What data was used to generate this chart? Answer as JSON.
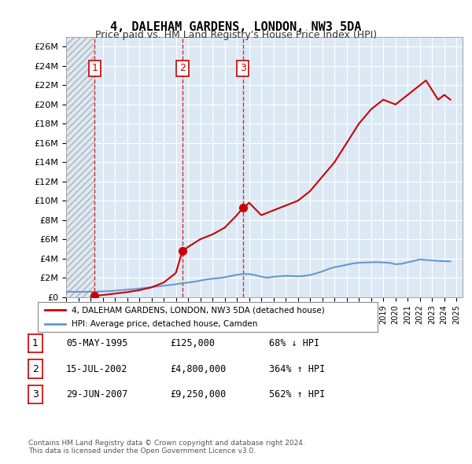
{
  "title": "4, DALEHAM GARDENS, LONDON, NW3 5DA",
  "subtitle": "Price paid vs. HM Land Registry's House Price Index (HPI)",
  "background_color": "#ffffff",
  "plot_bg_color": "#dce9f5",
  "grid_color": "#ffffff",
  "hatch_color": "#c0c0c0",
  "ylabel_values": [
    "£0",
    "£2M",
    "£4M",
    "£6M",
    "£8M",
    "£10M",
    "£12M",
    "£14M",
    "£16M",
    "£18M",
    "£20M",
    "£22M",
    "£24M",
    "£26M"
  ],
  "ytick_values": [
    0,
    2000000,
    4000000,
    6000000,
    8000000,
    10000000,
    12000000,
    14000000,
    16000000,
    18000000,
    20000000,
    22000000,
    24000000,
    26000000
  ],
  "ylim": [
    0,
    27000000
  ],
  "xlim_start": 1993.0,
  "xlim_end": 2025.5,
  "purchases": [
    {
      "year": 1995.35,
      "price": 125000,
      "label": "1"
    },
    {
      "year": 2002.54,
      "price": 4800000,
      "label": "2"
    },
    {
      "year": 2007.49,
      "price": 9250000,
      "label": "3"
    }
  ],
  "hpi_line_color": "#6699cc",
  "price_line_color": "#cc0000",
  "legend_entries": [
    "4, DALEHAM GARDENS, LONDON, NW3 5DA (detached house)",
    "HPI: Average price, detached house, Camden"
  ],
  "table_rows": [
    {
      "num": "1",
      "date": "05-MAY-1995",
      "price": "£125,000",
      "change": "68% ↓ HPI"
    },
    {
      "num": "2",
      "date": "15-JUL-2002",
      "price": "£4,800,000",
      "change": "364% ↑ HPI"
    },
    {
      "num": "3",
      "date": "29-JUN-2007",
      "price": "£9,250,000",
      "change": "562% ↑ HPI"
    }
  ],
  "footer": "Contains HM Land Registry data © Crown copyright and database right 2024.\nThis data is licensed under the Open Government Licence v3.0.",
  "hpi_data": {
    "years": [
      1993.0,
      1993.5,
      1994.0,
      1994.5,
      1995.0,
      1995.5,
      1996.0,
      1996.5,
      1997.0,
      1997.5,
      1998.0,
      1998.5,
      1999.0,
      1999.5,
      2000.0,
      2000.5,
      2001.0,
      2001.5,
      2002.0,
      2002.5,
      2003.0,
      2003.5,
      2004.0,
      2004.5,
      2005.0,
      2005.5,
      2006.0,
      2006.5,
      2007.0,
      2007.5,
      2008.0,
      2008.5,
      2009.0,
      2009.5,
      2010.0,
      2010.5,
      2011.0,
      2011.5,
      2012.0,
      2012.5,
      2013.0,
      2013.5,
      2014.0,
      2014.5,
      2015.0,
      2015.5,
      2016.0,
      2016.5,
      2017.0,
      2017.5,
      2018.0,
      2018.5,
      2019.0,
      2019.5,
      2020.0,
      2020.5,
      2021.0,
      2021.5,
      2022.0,
      2022.5,
      2023.0,
      2023.5,
      2024.0,
      2024.5
    ],
    "values": [
      550000,
      540000,
      530000,
      535000,
      540000,
      555000,
      580000,
      610000,
      650000,
      700000,
      760000,
      810000,
      870000,
      940000,
      1020000,
      1100000,
      1170000,
      1240000,
      1320000,
      1420000,
      1500000,
      1580000,
      1700000,
      1820000,
      1900000,
      1960000,
      2050000,
      2180000,
      2300000,
      2380000,
      2380000,
      2280000,
      2100000,
      2000000,
      2100000,
      2150000,
      2200000,
      2180000,
      2150000,
      2180000,
      2280000,
      2450000,
      2650000,
      2900000,
      3100000,
      3200000,
      3350000,
      3480000,
      3550000,
      3580000,
      3600000,
      3620000,
      3580000,
      3550000,
      3400000,
      3450000,
      3600000,
      3750000,
      3900000,
      3850000,
      3800000,
      3750000,
      3720000,
      3700000
    ]
  },
  "price_data": {
    "years": [
      1995.35,
      1995.4,
      1996.0,
      1997.0,
      1998.0,
      1999.0,
      2000.0,
      2001.0,
      2002.0,
      2002.54,
      2002.6,
      2003.0,
      2004.0,
      2005.0,
      2006.0,
      2007.0,
      2007.49,
      2007.6,
      2008.0,
      2009.0,
      2010.0,
      2011.0,
      2012.0,
      2013.0,
      2014.0,
      2015.0,
      2016.0,
      2017.0,
      2018.0,
      2019.0,
      2020.0,
      2021.0,
      2022.0,
      2022.5,
      2023.0,
      2023.5,
      2024.0,
      2024.5
    ],
    "values": [
      125000,
      125000,
      200000,
      350000,
      500000,
      700000,
      1000000,
      1500000,
      2500000,
      4800000,
      4800000,
      5200000,
      6000000,
      6500000,
      7200000,
      8500000,
      9250000,
      9250000,
      9800000,
      8500000,
      9000000,
      9500000,
      10000000,
      11000000,
      12500000,
      14000000,
      16000000,
      18000000,
      19500000,
      20500000,
      20000000,
      21000000,
      22000000,
      22500000,
      21500000,
      20500000,
      21000000,
      20500000
    ]
  }
}
